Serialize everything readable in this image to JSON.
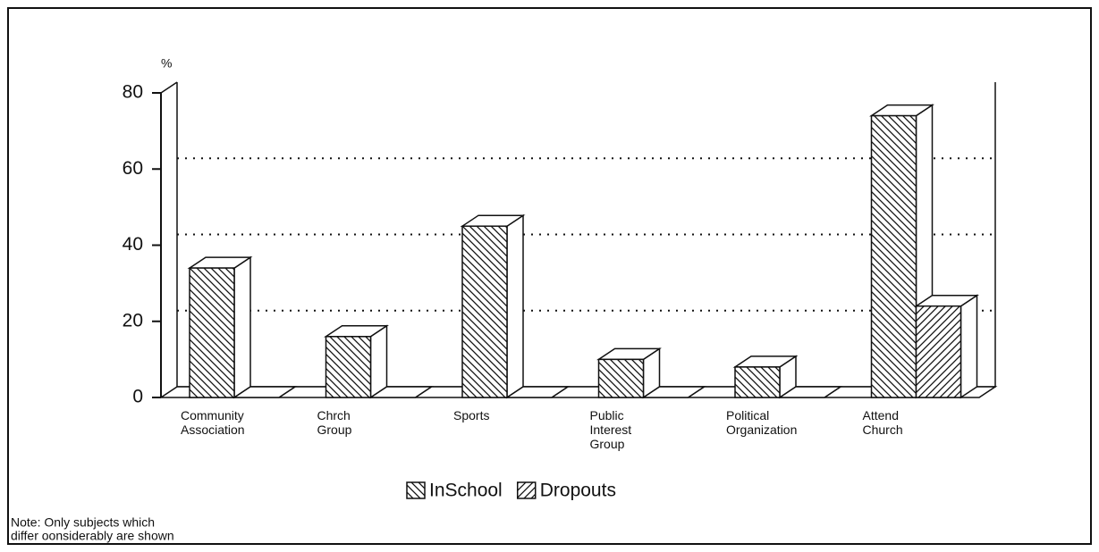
{
  "chart_data": {
    "type": "bar3d",
    "ylabel": "%",
    "categories": [
      "Community Association",
      "Chrch Group",
      "Sports",
      "Public Interest Group",
      "Political Organization",
      "Attend Church"
    ],
    "series": [
      {
        "name": "InSchool",
        "color": "#111111",
        "values": [
          34,
          16,
          45,
          10,
          8,
          74
        ]
      },
      {
        "name": "Dropouts",
        "color": "#111111",
        "values": [
          0,
          0,
          0,
          0,
          0,
          24
        ]
      }
    ],
    "ylim": [
      0,
      80
    ],
    "yticks": [
      0,
      20,
      40,
      60,
      80
    ],
    "grid": true,
    "note": [
      "Note: Only subjects which",
      "differ oonsiderably are shown"
    ]
  }
}
